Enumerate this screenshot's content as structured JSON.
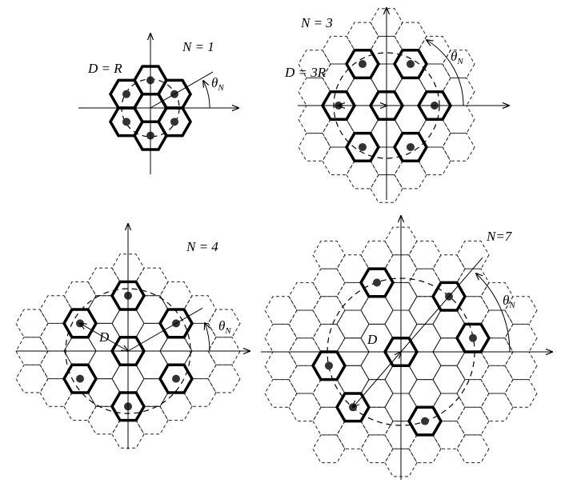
{
  "panels": [
    {
      "id": "n1",
      "n_label": "N = 1",
      "d_label": "D = R",
      "angle_symbol": "θ",
      "angle_sub": "N"
    },
    {
      "id": "n3",
      "n_label": "N = 3",
      "d_label": "D = 3R",
      "angle_symbol": "θ",
      "angle_sub": "N"
    },
    {
      "id": "n4",
      "n_label": "N = 4",
      "d_label": "D",
      "angle_symbol": "θ",
      "angle_sub": "N"
    },
    {
      "id": "n7",
      "n_label": "N=7",
      "d_label": "D",
      "angle_symbol": "θ",
      "angle_sub": "N"
    }
  ]
}
